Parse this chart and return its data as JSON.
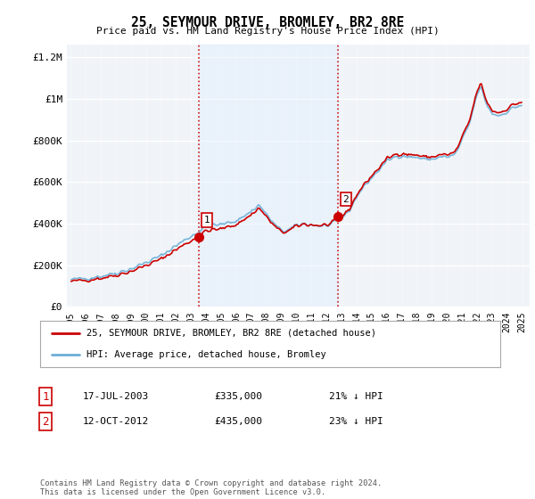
{
  "title": "25, SEYMOUR DRIVE, BROMLEY, BR2 8RE",
  "subtitle": "Price paid vs. HM Land Registry's House Price Index (HPI)",
  "hpi_color": "#6baed6",
  "price_color": "#cc0000",
  "vline_color": "#cc0000",
  "shade_color": "#ddeeff",
  "ylim": [
    0,
    1260000
  ],
  "xlim_start": 1994.75,
  "xlim_end": 2025.5,
  "yticks": [
    0,
    200000,
    400000,
    600000,
    800000,
    1000000,
    1200000
  ],
  "ytick_labels": [
    "£0",
    "£200K",
    "£400K",
    "£600K",
    "£800K",
    "£1M",
    "£1.2M"
  ],
  "xtick_years": [
    1995,
    1996,
    1997,
    1998,
    1999,
    2000,
    2001,
    2002,
    2003,
    2004,
    2005,
    2006,
    2007,
    2008,
    2009,
    2010,
    2011,
    2012,
    2013,
    2014,
    2015,
    2016,
    2017,
    2018,
    2019,
    2020,
    2021,
    2022,
    2023,
    2024,
    2025
  ],
  "marker1_x": 2003.54,
  "marker1_y": 335000,
  "marker2_x": 2012.79,
  "marker2_y": 435000,
  "vline1_x": 2003.54,
  "vline2_x": 2012.79,
  "legend_price_label": "25, SEYMOUR DRIVE, BROMLEY, BR2 8RE (detached house)",
  "legend_hpi_label": "HPI: Average price, detached house, Bromley",
  "annotation1_label": "1",
  "annotation1_date": "17-JUL-2003",
  "annotation1_price": "£335,000",
  "annotation1_hpi": "21% ↓ HPI",
  "annotation2_label": "2",
  "annotation2_date": "12-OCT-2012",
  "annotation2_price": "£435,000",
  "annotation2_hpi": "23% ↓ HPI",
  "footer": "Contains HM Land Registry data © Crown copyright and database right 2024.\nThis data is licensed under the Open Government Licence v3.0.",
  "background_color": "#ffffff",
  "plot_bg_color": "#f0f4f8"
}
